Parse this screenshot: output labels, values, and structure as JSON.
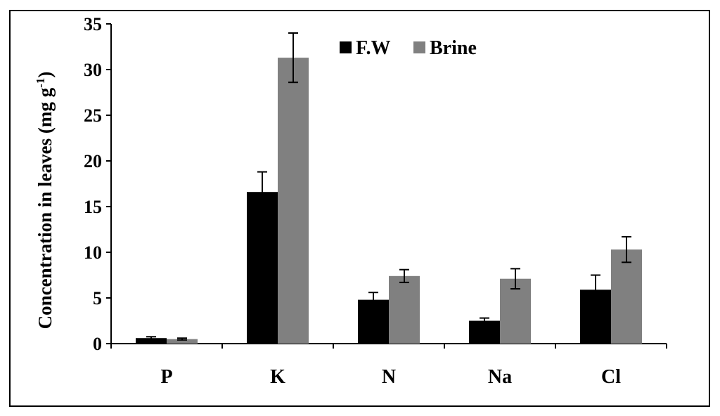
{
  "chart_data": {
    "type": "bar",
    "categories": [
      "P",
      "K",
      "N",
      "Na",
      "Cl"
    ],
    "series": [
      {
        "name": "F.W",
        "color": "#000000",
        "values": [
          0.6,
          16.6,
          4.8,
          2.5,
          5.9
        ],
        "errors": [
          0.15,
          2.2,
          0.8,
          0.3,
          1.6
        ]
      },
      {
        "name": "Brine",
        "color": "#808080",
        "values": [
          0.5,
          31.3,
          7.4,
          7.1,
          10.3
        ],
        "errors": [
          0.1,
          2.7,
          0.7,
          1.1,
          1.4
        ]
      }
    ],
    "ylabel": "Concentration in leaves (mg g",
    "ylabel_superscript": "-1",
    "ylabel_close": ")",
    "ylim": [
      0,
      35
    ],
    "yticks": [
      "0",
      "5",
      "10",
      "15",
      "20",
      "25",
      "30",
      "35"
    ],
    "grid": false,
    "legend_position": "top-center"
  }
}
